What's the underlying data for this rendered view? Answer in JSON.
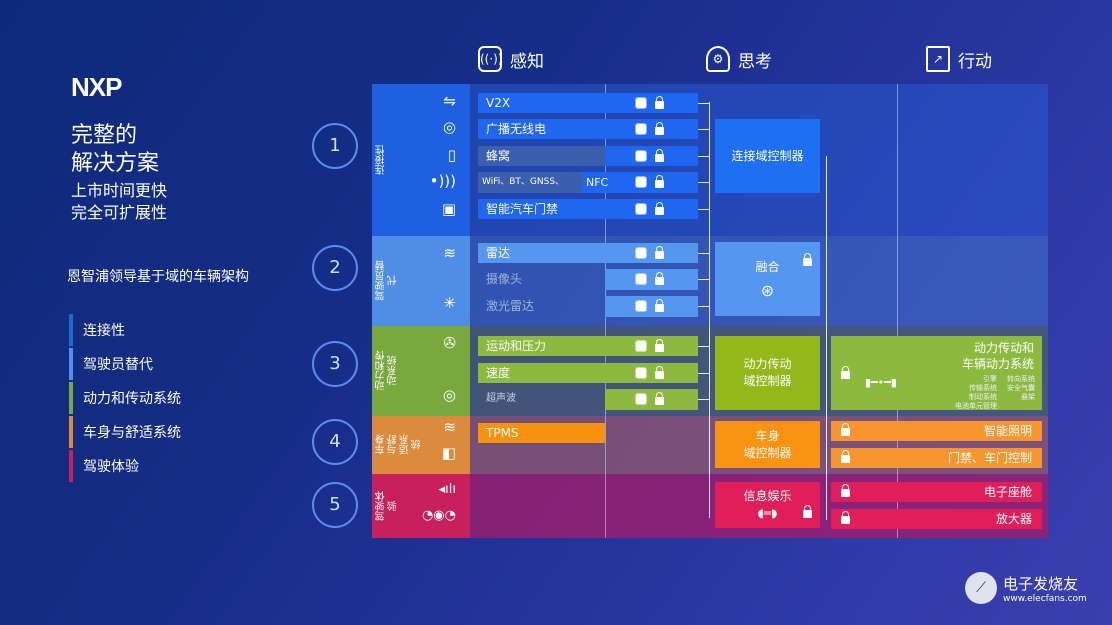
{
  "brand": {
    "logo": "NXP",
    "title_line1": "完整的",
    "title_line2": "解决方案",
    "sub_line1": "上市时间更快",
    "sub_line2": "完全可扩展性",
    "tagline": "恩智浦领导基于域的车辆架构"
  },
  "legend": [
    {
      "label": "连接性",
      "color": "#1a6ad0"
    },
    {
      "label": "驾驶员替代",
      "color": "#4f8ff0"
    },
    {
      "label": "动力和传动系统",
      "color": "#7aaa3a"
    },
    {
      "label": "车身与舒适系统",
      "color": "#e0883a"
    },
    {
      "label": "驾驶体验",
      "color": "#c8205a"
    }
  ],
  "steps": [
    "1",
    "2",
    "3",
    "4",
    "5"
  ],
  "columns": {
    "sense": "感知",
    "think": "思考",
    "act": "行动"
  },
  "categories": {
    "connectivity": "连接性",
    "driver": "驾驶员替代",
    "powertrain": "动力和传动系统",
    "body": "车身与舒适系统",
    "experience": "驾驶体验"
  },
  "sensors": {
    "v2x": "V2X",
    "radio": "广播无线电",
    "cellular": "蜂窝",
    "wireless": "WiFi、BT、GNSS、",
    "nfc": "NFC",
    "smart_access": "智能汽车门禁",
    "radar": "雷达",
    "camera": "摄像头",
    "lidar": "激光雷达",
    "motion": "运动和压力",
    "speed": "速度",
    "ultrasonic": "超声波",
    "tpms": "TPMS"
  },
  "controllers": {
    "connectivity": "连接域控制器",
    "fusion": "融合",
    "powertrain_l1": "动力传动",
    "powertrain_l2": "域控制器",
    "body_l1": "车身",
    "body_l2": "域控制器",
    "infotainment": "信息娱乐"
  },
  "actions": {
    "powertrain_l1": "动力传动和",
    "powertrain_l2": "车辆动力系统",
    "sub": [
      "引擎",
      "转向系统",
      "传输系统",
      "安全气囊",
      "制动系统",
      "悬架",
      "电池单元管理"
    ],
    "lighting": "智能照明",
    "door": "门禁、车门控制",
    "cockpit": "电子座舱",
    "amplifier": "放大器"
  },
  "watermark": {
    "name": "电子发烧友",
    "url": "www.elecfans.com"
  }
}
